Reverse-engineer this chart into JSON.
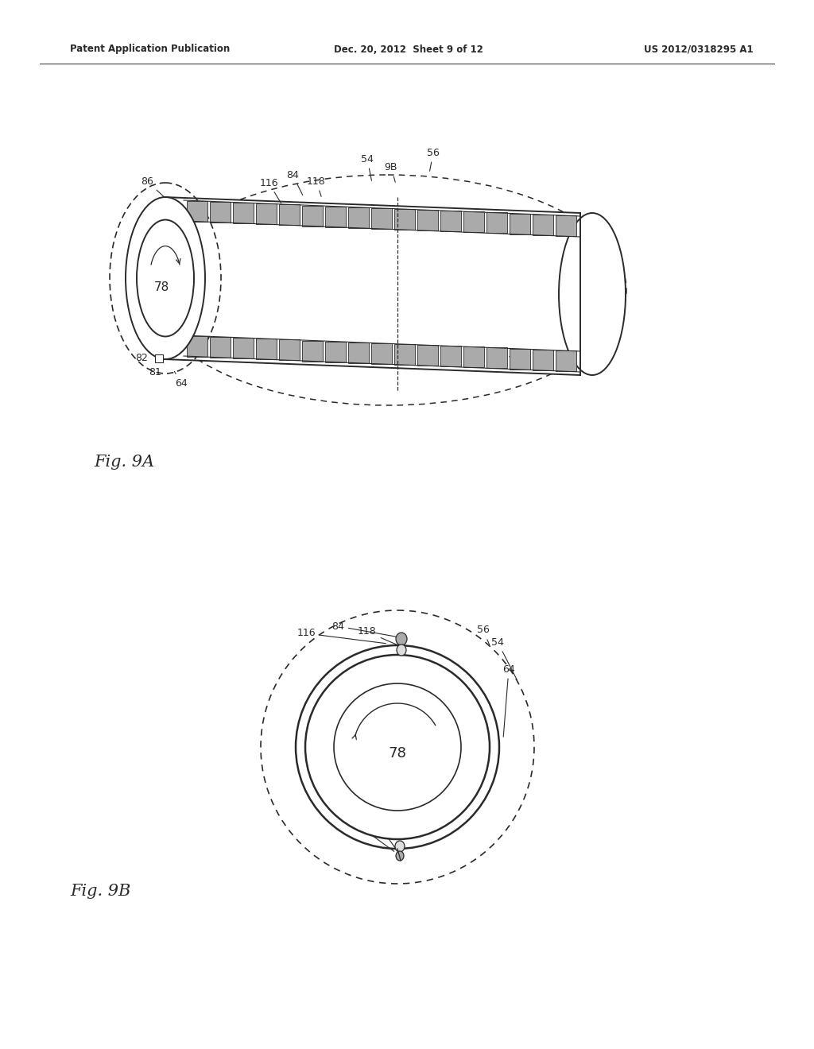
{
  "header_left": "Patent Application Publication",
  "header_center": "Dec. 20, 2012  Sheet 9 of 12",
  "header_right": "US 2012/0318295 A1",
  "fig9A_label": "Fig. 9A",
  "fig9B_label": "Fig. 9B",
  "background_color": "#ffffff",
  "line_color": "#2a2a2a",
  "gray_fill": "#aaaaaa",
  "dark_fill": "#555555"
}
